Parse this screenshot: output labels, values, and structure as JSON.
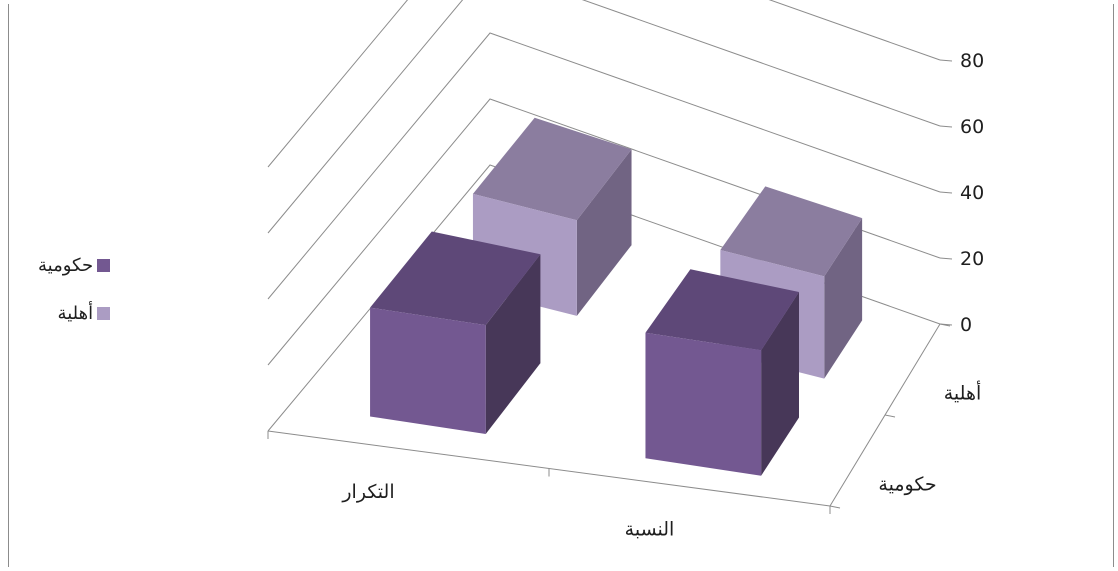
{
  "chart_data": {
    "type": "bar",
    "categories": [
      "التكرار",
      "النسبة"
    ],
    "depth_categories": [
      "حكومية",
      "أهلية"
    ],
    "series": [
      {
        "name": "حكومية",
        "values": [
          33,
          38
        ],
        "color": "#735891",
        "side_color": "#473758",
        "top_color": "#5e4878"
      },
      {
        "name": "أهلية",
        "values": [
          29,
          31
        ],
        "color": "#ab9cc3",
        "side_color": "#716483",
        "top_color": "#8b7d9f"
      }
    ],
    "ylim": [
      0,
      80
    ],
    "yticks": [
      0,
      20,
      40,
      60,
      80
    ],
    "grid": true,
    "legend_position": "left",
    "title": "",
    "xlabel": "",
    "ylabel": ""
  },
  "legend": {
    "items": [
      {
        "label": "حكومية",
        "color": "#735891"
      },
      {
        "label": "أهلية",
        "color": "#ab9cc3"
      }
    ]
  }
}
